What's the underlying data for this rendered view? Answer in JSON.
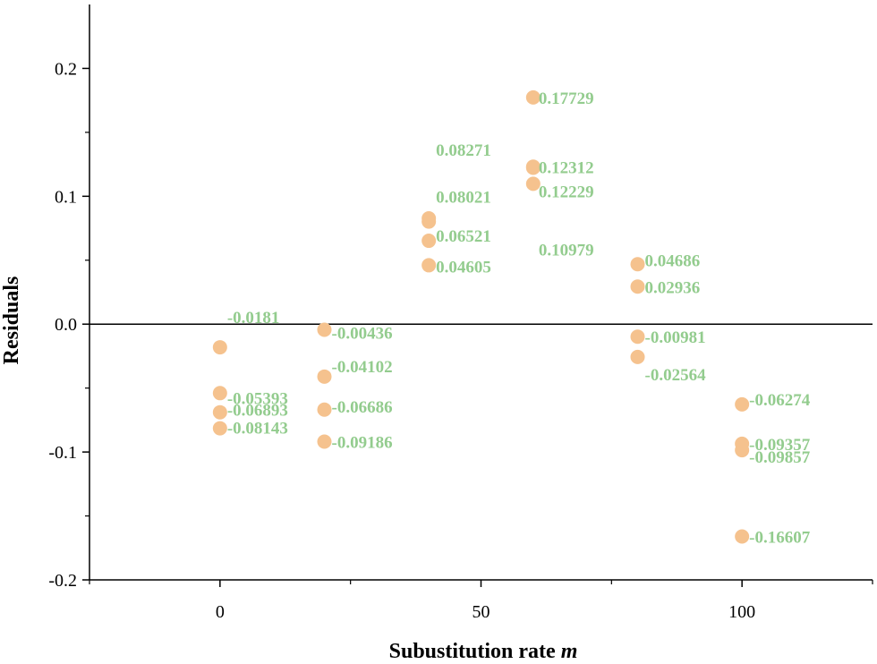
{
  "chart_data": {
    "type": "scatter",
    "title": "",
    "xlabel": "Subustitution rate",
    "xlabel_var": "m",
    "ylabel": "Residuals",
    "xlim": [
      -25,
      125
    ],
    "ylim": [
      -0.2,
      0.25
    ],
    "xticks": [
      0,
      50,
      100
    ],
    "xtick_labels": [
      "0",
      "50",
      "100"
    ],
    "yticks": [
      -0.2,
      -0.1,
      0.0,
      0.1,
      0.2
    ],
    "ytick_labels": [
      "-0.2",
      "-0.1",
      "0.0",
      "0.1",
      "0.2"
    ],
    "zero_line": true,
    "colors": {
      "marker": "#F5C28E",
      "label": "#93CC8E",
      "axis": "#000000"
    },
    "points": [
      {
        "x": 0,
        "y": -0.0181,
        "label": "-0.0181"
      },
      {
        "x": 0,
        "y": -0.05393,
        "label": "-0.05393"
      },
      {
        "x": 0,
        "y": -0.06893,
        "label": "-0.06893"
      },
      {
        "x": 0,
        "y": -0.08143,
        "label": "-0.08143"
      },
      {
        "x": 20,
        "y": -0.00436,
        "label": "-0.00436"
      },
      {
        "x": 20,
        "y": -0.04102,
        "label": "-0.04102"
      },
      {
        "x": 20,
        "y": -0.06686,
        "label": "-0.06686"
      },
      {
        "x": 20,
        "y": -0.09186,
        "label": "-0.09186"
      },
      {
        "x": 40,
        "y": 0.08271,
        "label": "0.08271"
      },
      {
        "x": 40,
        "y": 0.08021,
        "label": "0.08021"
      },
      {
        "x": 40,
        "y": 0.06521,
        "label": "0.06521"
      },
      {
        "x": 40,
        "y": 0.04605,
        "label": "0.04605"
      },
      {
        "x": 60,
        "y": 0.17729,
        "label": "0.17729"
      },
      {
        "x": 60,
        "y": 0.12312,
        "label": "0.12312"
      },
      {
        "x": 60,
        "y": 0.12229,
        "label": "0.12229"
      },
      {
        "x": 60,
        "y": 0.10979,
        "label": "0.10979"
      },
      {
        "x": 80,
        "y": 0.04686,
        "label": "0.04686"
      },
      {
        "x": 80,
        "y": 0.02936,
        "label": "0.02936"
      },
      {
        "x": 80,
        "y": -0.00981,
        "label": "-0.00981"
      },
      {
        "x": 80,
        "y": -0.02564,
        "label": "-0.02564"
      },
      {
        "x": 100,
        "y": -0.06274,
        "label": "-0.06274"
      },
      {
        "x": 100,
        "y": -0.09357,
        "label": "-0.09357"
      },
      {
        "x": 100,
        "y": -0.09857,
        "label": "-0.09857"
      },
      {
        "x": 100,
        "y": -0.16607,
        "label": "-0.16607"
      }
    ]
  }
}
